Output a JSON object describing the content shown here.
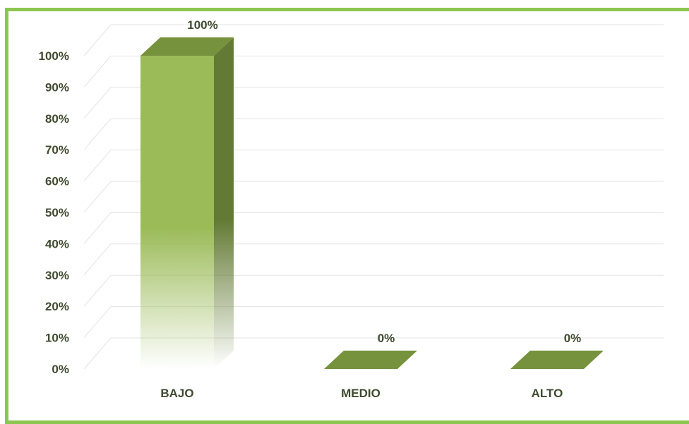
{
  "chart_data": {
    "type": "bar",
    "categories": [
      "BAJO",
      "MEDIO",
      "ALTO"
    ],
    "values": [
      100,
      0,
      0
    ],
    "data_labels": [
      "100%",
      "0%",
      "0%"
    ],
    "y_ticks": [
      "0%",
      "10%",
      "20%",
      "30%",
      "40%",
      "50%",
      "60%",
      "70%",
      "80%",
      "90%",
      "100%"
    ],
    "ylim": [
      0,
      100
    ],
    "grid": true,
    "style": "3d-column"
  },
  "colors": {
    "frame": "#8cc651",
    "bar_front": "#9bbb59",
    "bar_side": "#637a34",
    "bar_top": "#76923c",
    "grid": "#e3e3e3",
    "text": "#3f4a30"
  }
}
